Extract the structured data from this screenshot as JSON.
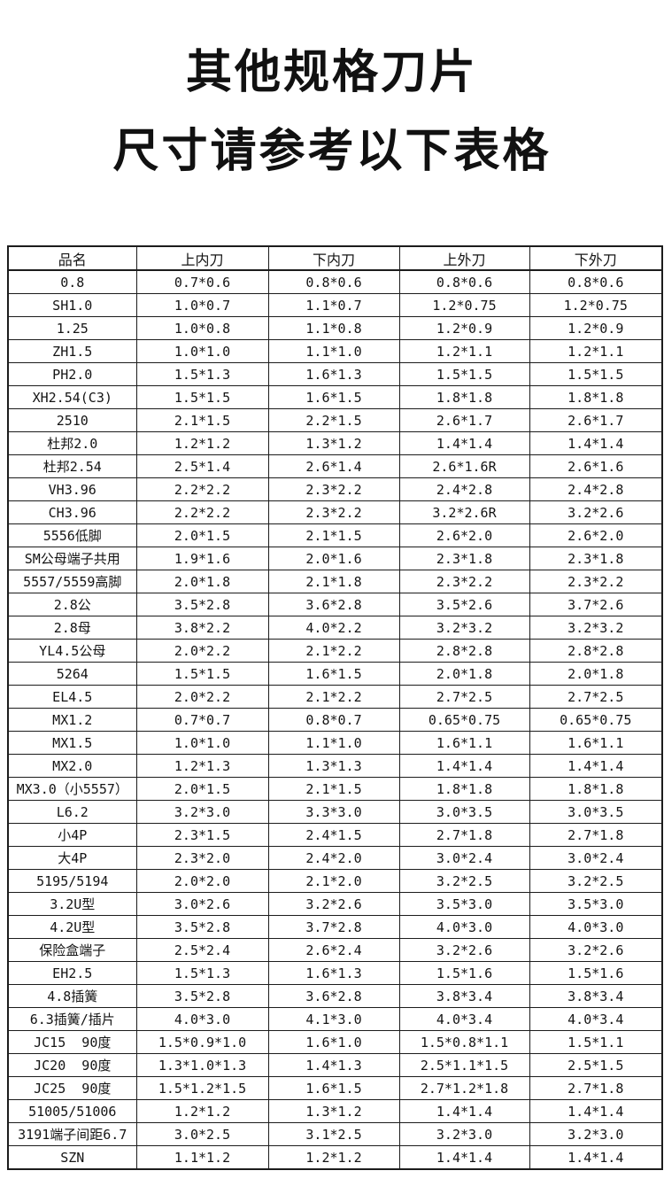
{
  "title": {
    "line1": "其他规格刀片",
    "line2": "尺寸请参考以下表格"
  },
  "table": {
    "headers": [
      "品名",
      "上内刀",
      "下内刀",
      "上外刀",
      "下外刀"
    ],
    "rows": [
      [
        "0.8",
        "0.7*0.6",
        "0.8*0.6",
        "0.8*0.6",
        "0.8*0.6"
      ],
      [
        "SH1.0",
        "1.0*0.7",
        "1.1*0.7",
        "1.2*0.75",
        "1.2*0.75"
      ],
      [
        "1.25",
        "1.0*0.8",
        "1.1*0.8",
        "1.2*0.9",
        "1.2*0.9"
      ],
      [
        "ZH1.5",
        "1.0*1.0",
        "1.1*1.0",
        "1.2*1.1",
        "1.2*1.1"
      ],
      [
        "PH2.0",
        "1.5*1.3",
        "1.6*1.3",
        "1.5*1.5",
        "1.5*1.5"
      ],
      [
        "XH2.54(C3)",
        "1.5*1.5",
        "1.6*1.5",
        "1.8*1.8",
        "1.8*1.8"
      ],
      [
        "2510",
        "2.1*1.5",
        "2.2*1.5",
        "2.6*1.7",
        "2.6*1.7"
      ],
      [
        "杜邦2.0",
        "1.2*1.2",
        "1.3*1.2",
        "1.4*1.4",
        "1.4*1.4"
      ],
      [
        "杜邦2.54",
        "2.5*1.4",
        "2.6*1.4",
        "2.6*1.6R",
        "2.6*1.6"
      ],
      [
        "VH3.96",
        "2.2*2.2",
        "2.3*2.2",
        "2.4*2.8",
        "2.4*2.8"
      ],
      [
        "CH3.96",
        "2.2*2.2",
        "2.3*2.2",
        "3.2*2.6R",
        "3.2*2.6"
      ],
      [
        "5556低脚",
        "2.0*1.5",
        "2.1*1.5",
        "2.6*2.0",
        "2.6*2.0"
      ],
      [
        "SM公母端子共用",
        "1.9*1.6",
        "2.0*1.6",
        "2.3*1.8",
        "2.3*1.8"
      ],
      [
        "5557/5559高脚",
        "2.0*1.8",
        "2.1*1.8",
        "2.3*2.2",
        "2.3*2.2"
      ],
      [
        "2.8公",
        "3.5*2.8",
        "3.6*2.8",
        "3.5*2.6",
        "3.7*2.6"
      ],
      [
        "2.8母",
        "3.8*2.2",
        "4.0*2.2",
        "3.2*3.2",
        "3.2*3.2"
      ],
      [
        "YL4.5公母",
        "2.0*2.2",
        "2.1*2.2",
        "2.8*2.8",
        "2.8*2.8"
      ],
      [
        "5264",
        "1.5*1.5",
        "1.6*1.5",
        "2.0*1.8",
        "2.0*1.8"
      ],
      [
        "EL4.5",
        "2.0*2.2",
        "2.1*2.2",
        "2.7*2.5",
        "2.7*2.5"
      ],
      [
        "MX1.2",
        "0.7*0.7",
        "0.8*0.7",
        "0.65*0.75",
        "0.65*0.75"
      ],
      [
        "MX1.5",
        "1.0*1.0",
        "1.1*1.0",
        "1.6*1.1",
        "1.6*1.1"
      ],
      [
        "MX2.0",
        "1.2*1.3",
        "1.3*1.3",
        "1.4*1.4",
        "1.4*1.4"
      ],
      [
        "MX3.0（小5557）",
        "2.0*1.5",
        "2.1*1.5",
        "1.8*1.8",
        "1.8*1.8"
      ],
      [
        "L6.2",
        "3.2*3.0",
        "3.3*3.0",
        "3.0*3.5",
        "3.0*3.5"
      ],
      [
        "小4P",
        "2.3*1.5",
        "2.4*1.5",
        "2.7*1.8",
        "2.7*1.8"
      ],
      [
        "大4P",
        "2.3*2.0",
        "2.4*2.0",
        "3.0*2.4",
        "3.0*2.4"
      ],
      [
        "5195/5194",
        "2.0*2.0",
        "2.1*2.0",
        "3.2*2.5",
        "3.2*2.5"
      ],
      [
        "3.2U型",
        "3.0*2.6",
        "3.2*2.6",
        "3.5*3.0",
        "3.5*3.0"
      ],
      [
        "4.2U型",
        "3.5*2.8",
        "3.7*2.8",
        "4.0*3.0",
        "4.0*3.0"
      ],
      [
        "保险盒端子",
        "2.5*2.4",
        "2.6*2.4",
        "3.2*2.6",
        "3.2*2.6"
      ],
      [
        "EH2.5",
        "1.5*1.3",
        "1.6*1.3",
        "1.5*1.6",
        "1.5*1.6"
      ],
      [
        "4.8插簧",
        "3.5*2.8",
        "3.6*2.8",
        "3.8*3.4",
        "3.8*3.4"
      ],
      [
        "6.3插簧/插片",
        "4.0*3.0",
        "4.1*3.0",
        "4.0*3.4",
        "4.0*3.4"
      ],
      [
        "JC15  90度",
        "1.5*0.9*1.0",
        "1.6*1.0",
        "1.5*0.8*1.1",
        "1.5*1.1"
      ],
      [
        "JC20  90度",
        "1.3*1.0*1.3",
        "1.4*1.3",
        "2.5*1.1*1.5",
        "2.5*1.5"
      ],
      [
        "JC25  90度",
        "1.5*1.2*1.5",
        "1.6*1.5",
        "2.7*1.2*1.8",
        "2.7*1.8"
      ],
      [
        "51005/51006",
        "1.2*1.2",
        "1.3*1.2",
        "1.4*1.4",
        "1.4*1.4"
      ],
      [
        "3191端子间距6.7",
        "3.0*2.5",
        "3.1*2.5",
        "3.2*3.0",
        "3.2*3.0"
      ],
      [
        "SZN",
        "1.1*1.2",
        "1.2*1.2",
        "1.4*1.4",
        "1.4*1.4"
      ]
    ],
    "colors": {
      "border": "#1c1c1c",
      "text": "#141414",
      "background": "#ffffff"
    }
  }
}
